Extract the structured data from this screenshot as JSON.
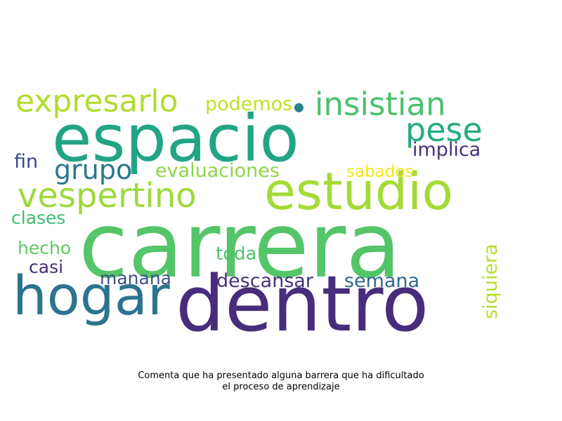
{
  "wordcloud": {
    "words": [
      {
        "text": "carrera",
        "color": "#54c568"
      },
      {
        "text": "dentro",
        "color": "#472d7b"
      },
      {
        "text": "espacio",
        "color": "#21a585"
      },
      {
        "text": "estudio",
        "color": "#a5db36"
      },
      {
        "text": "hogar",
        "color": "#2c738e"
      },
      {
        "text": "vespertino",
        "color": "#9dd93b"
      },
      {
        "text": "expresarlo",
        "color": "#b0dd2f"
      },
      {
        "text": "insistian",
        "color": "#4ac16d"
      },
      {
        "text": "pese",
        "color": "#25ab82"
      },
      {
        "text": "grupo",
        "color": "#2a788e"
      },
      {
        "text": "evaluaciones",
        "color": "#8ed645"
      },
      {
        "text": "podemos",
        "color": "#c2df23"
      },
      {
        "text": "implica",
        "color": "#46327e"
      },
      {
        "text": "sabados",
        "color": "#f1e51d"
      },
      {
        "text": "fin",
        "color": "#3e4989"
      },
      {
        "text": "clases",
        "color": "#3fbc73"
      },
      {
        "text": "hecho",
        "color": "#5ec962"
      },
      {
        "text": "casi",
        "color": "#472c7a"
      },
      {
        "text": "toda",
        "color": "#4ec36b"
      },
      {
        "text": "manana",
        "color": "#3b528b"
      },
      {
        "text": "descansar",
        "color": "#46337e"
      },
      {
        "text": "semana",
        "color": "#31688e"
      },
      {
        "text": "siquiera",
        "color": "#b5de2b"
      }
    ],
    "dot_color": "#26828e"
  },
  "caption": {
    "line1": "Comenta que ha presentado alguna barrera que ha dificultado",
    "line2": "el proceso de aprendizaje"
  }
}
